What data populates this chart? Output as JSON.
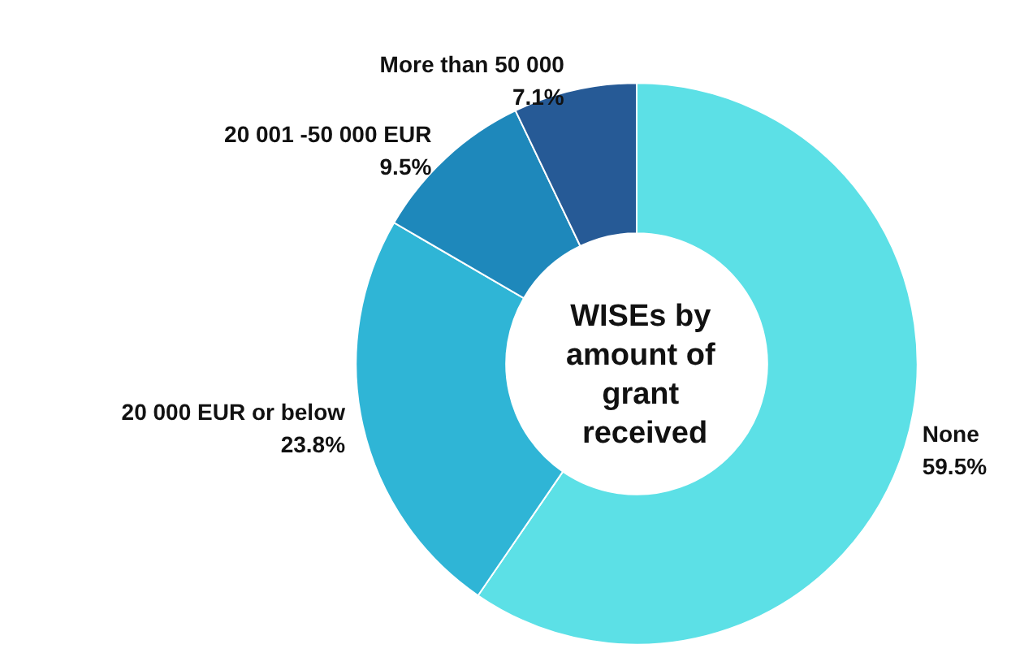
{
  "chart_data": {
    "type": "donut",
    "title": "WISEs by amount of grant received",
    "categories": [
      "None",
      "20 000 EUR or below",
      "20 001 -50 000 EUR",
      "More than 50 000"
    ],
    "values": [
      59.5,
      23.8,
      9.5,
      7.1
    ],
    "value_labels": [
      "59.5%",
      "23.8%",
      "9.5%",
      "7.1%"
    ],
    "colors": [
      "#5ce0e6",
      "#2fb5d6",
      "#1e88bb",
      "#265a96"
    ],
    "legend": false
  }
}
